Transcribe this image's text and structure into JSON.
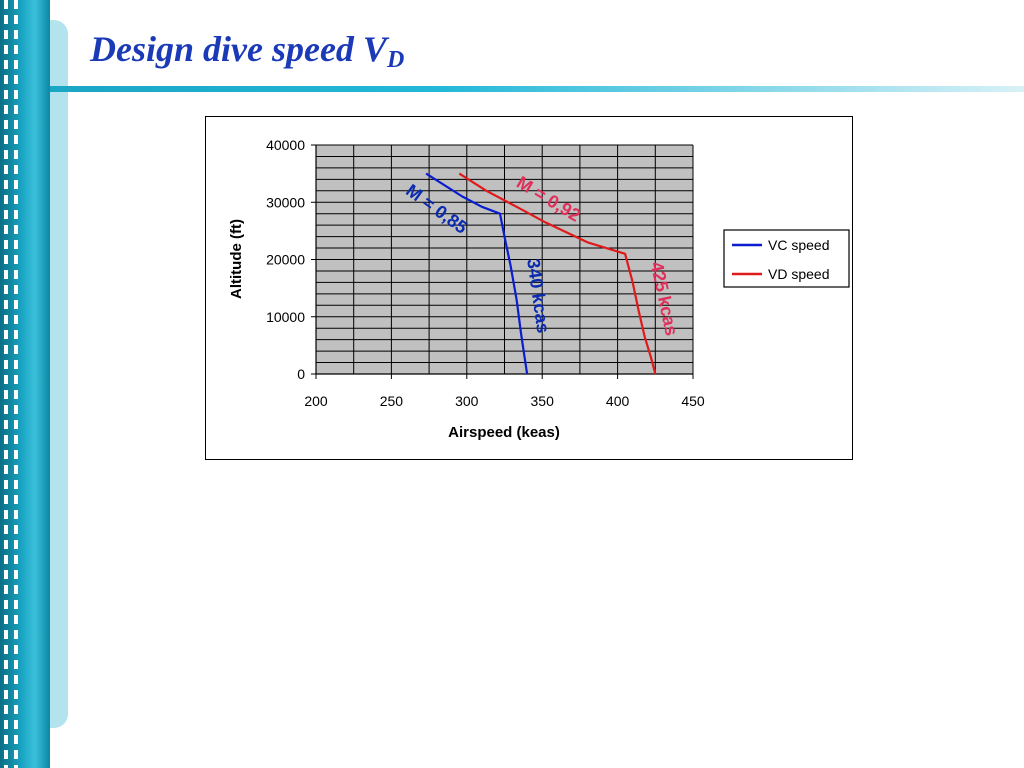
{
  "slide": {
    "title_main": "Design dive speed V",
    "title_sub": "D"
  },
  "colors": {
    "title": "#1a3ab8",
    "accent_bar": "#1aa6c4",
    "plot_bg": "#c0c0c0",
    "vc_series": "#0a1ecf",
    "vd_series": "#e01a1a",
    "vd_annotation": "#e0305a"
  },
  "chart_data": {
    "type": "line",
    "xlabel": "Airspeed (keas)",
    "ylabel": "Altitude (ft)",
    "xlim": [
      200,
      450
    ],
    "ylim": [
      0,
      40000
    ],
    "x_ticks": [
      "200",
      "250",
      "300",
      "350",
      "400",
      "450"
    ],
    "y_ticks": [
      "0",
      "10000",
      "20000",
      "30000",
      "40000"
    ],
    "grid": true,
    "legend_position": "right",
    "series": [
      {
        "name": "VC speed",
        "color": "#0a1ecf",
        "points": [
          [
            273,
            35000
          ],
          [
            297,
            31000
          ],
          [
            310,
            29200
          ],
          [
            322,
            28000
          ],
          [
            325,
            24000
          ],
          [
            329,
            19000
          ],
          [
            333,
            13000
          ],
          [
            336,
            7000
          ],
          [
            338,
            3500
          ],
          [
            340,
            0
          ]
        ]
      },
      {
        "name": "VD speed",
        "color": "#e01a1a",
        "points": [
          [
            295,
            35000
          ],
          [
            313,
            32000
          ],
          [
            338,
            28500
          ],
          [
            352,
            26500
          ],
          [
            380,
            23000
          ],
          [
            405,
            21000
          ],
          [
            410,
            16000
          ],
          [
            414,
            11000
          ],
          [
            418,
            6500
          ],
          [
            422,
            3000
          ],
          [
            425,
            0
          ]
        ]
      }
    ],
    "annotations": [
      {
        "text": "M = 0,85",
        "color": "#0a2ab0"
      },
      {
        "text": "340 kcas",
        "color": "#0a2ab0"
      },
      {
        "text": "M = 0,92",
        "color": "#e0305a"
      },
      {
        "text": "425 kcas",
        "color": "#e0305a"
      }
    ]
  }
}
